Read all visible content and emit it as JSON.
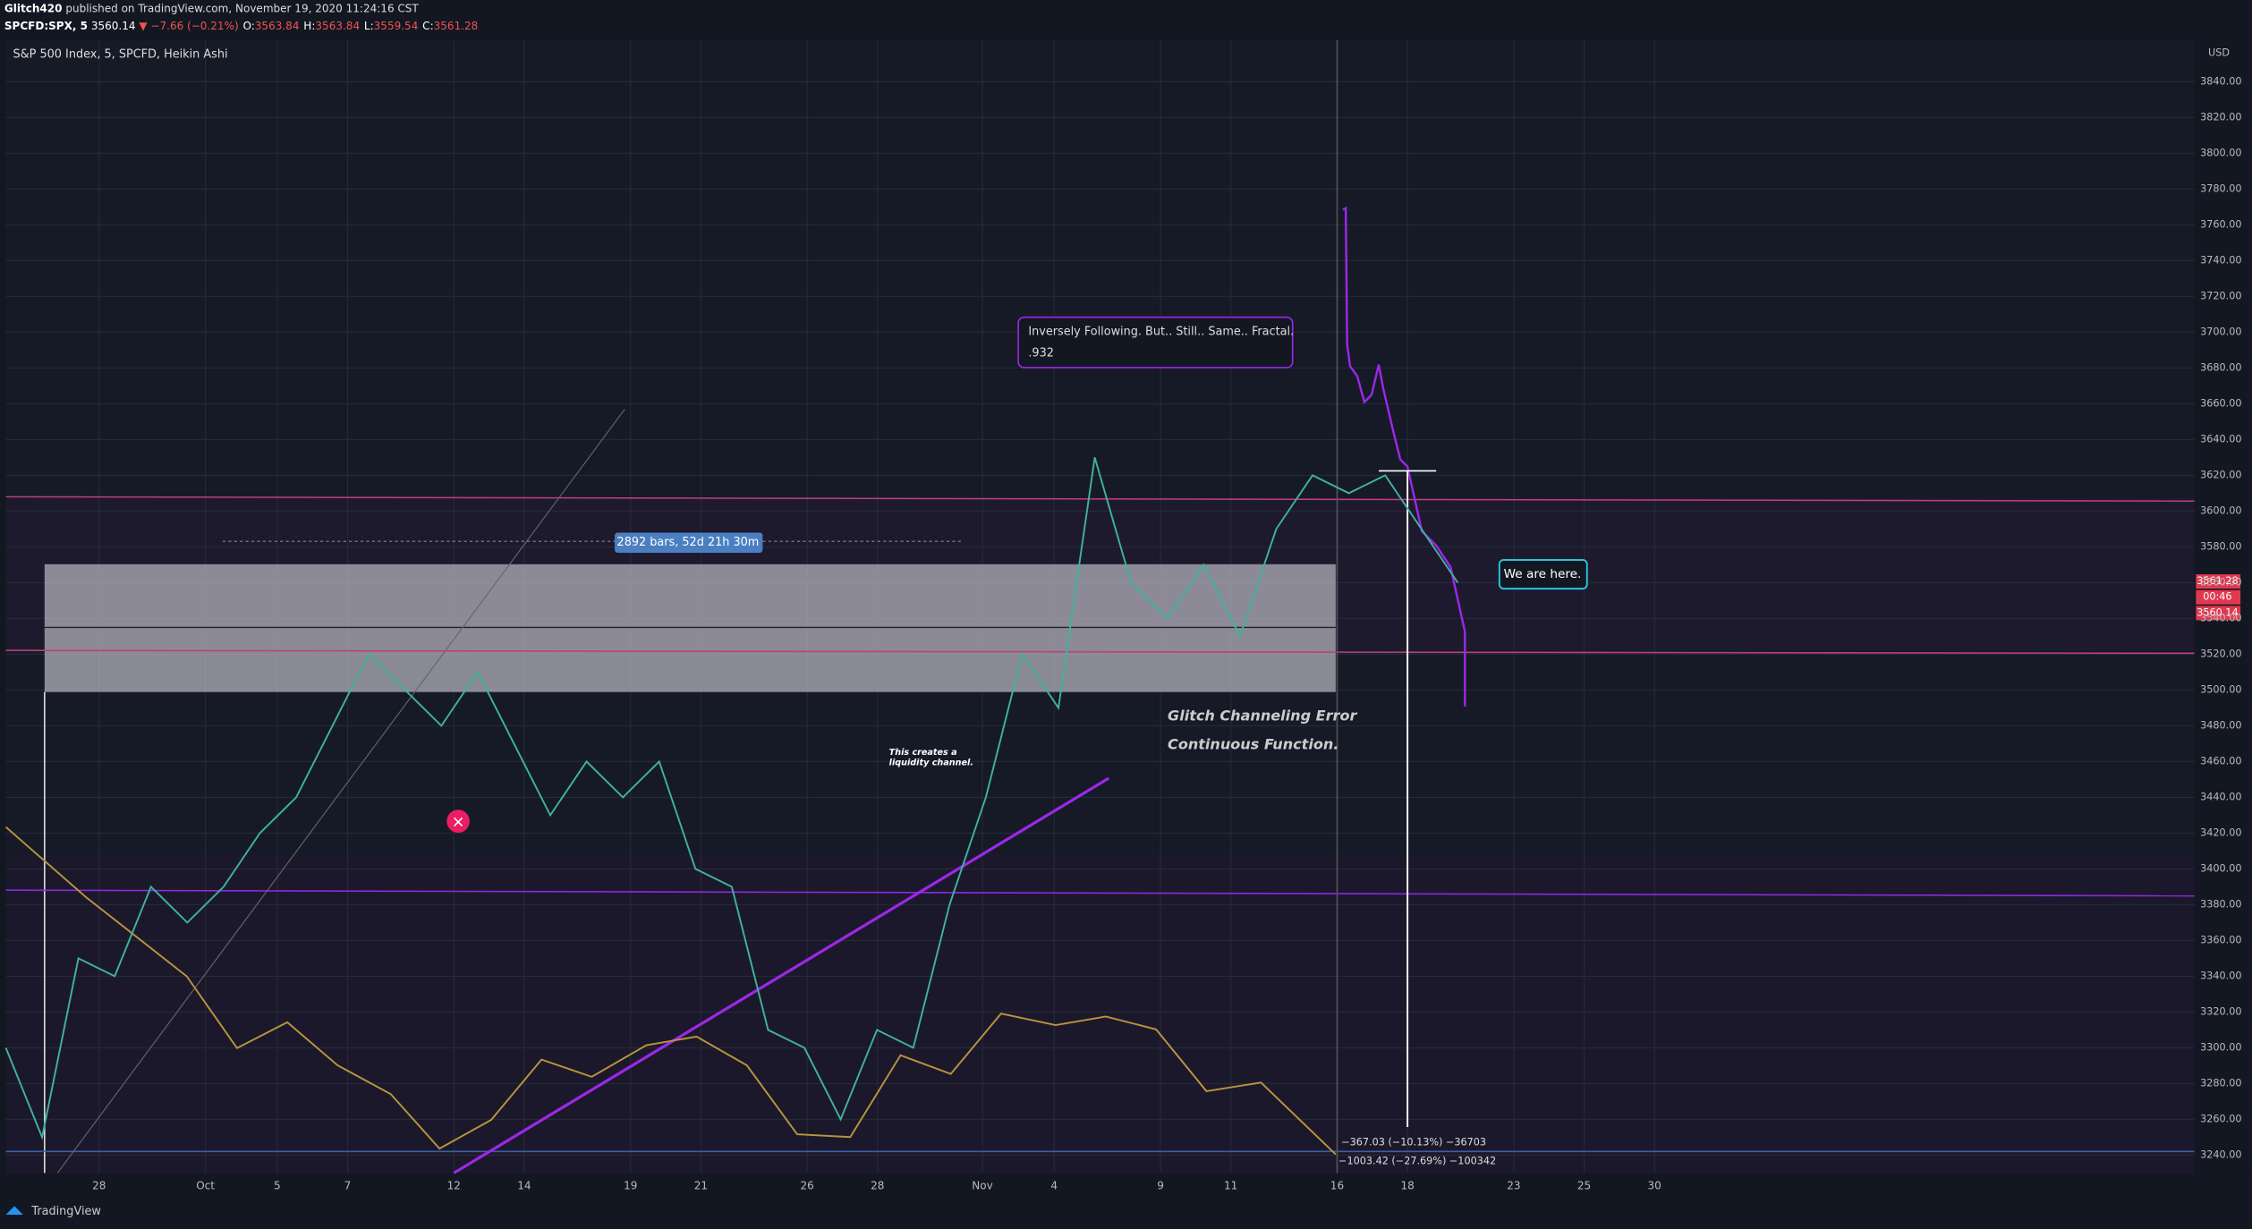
{
  "header": {
    "author": "Glitch420",
    "published": "published on TradingView.com, November 19, 2020 11:24:16 CST",
    "symbol": "SPCFD:SPX, 5",
    "last": "3560.14",
    "change": "▼ −7.66 (−0.21%)",
    "ohlc": [
      {
        "k": "O:",
        "v": "3563.84"
      },
      {
        "k": "H:",
        "v": "3563.84"
      },
      {
        "k": "L:",
        "v": "3559.54"
      },
      {
        "k": "C:",
        "v": "3561.28"
      }
    ]
  },
  "legend": "S&P 500 Index, 5, SPCFD, Heikin Ashi",
  "currency": "USD",
  "axis": {
    "ylim": [
      3230,
      3860
    ],
    "yticks": [
      {
        "value": 3240,
        "label": "3240.00"
      },
      {
        "value": 3260,
        "label": "3260.00"
      },
      {
        "value": 3280,
        "label": "3280.00"
      },
      {
        "value": 3300,
        "label": "3300.00"
      },
      {
        "value": 3320,
        "label": "3320.00"
      },
      {
        "value": 3340,
        "label": "3340.00"
      },
      {
        "value": 3360,
        "label": "3360.00"
      },
      {
        "value": 3380,
        "label": "3380.00"
      },
      {
        "value": 3400,
        "label": "3400.00"
      },
      {
        "value": 3420,
        "label": "3420.00"
      },
      {
        "value": 3440,
        "label": "3440.00"
      },
      {
        "value": 3460,
        "label": "3460.00"
      },
      {
        "value": 3480,
        "label": "3480.00"
      },
      {
        "value": 3500,
        "label": "3500.00"
      },
      {
        "value": 3520,
        "label": "3520.00"
      },
      {
        "value": 3540,
        "label": "3540.00"
      },
      {
        "value": 3560,
        "label": "3560.00"
      },
      {
        "value": 3580,
        "label": "3580.00"
      },
      {
        "value": 3600,
        "label": "3600.00"
      },
      {
        "value": 3620,
        "label": "3620.00"
      },
      {
        "value": 3640,
        "label": "3640.00"
      },
      {
        "value": 3660,
        "label": "3660.00"
      },
      {
        "value": 3680,
        "label": "3680.00"
      },
      {
        "value": 3700,
        "label": "3700.00"
      },
      {
        "value": 3720,
        "label": "3720.00"
      },
      {
        "value": 3740,
        "label": "3740.00"
      },
      {
        "value": 3760,
        "label": "3760.00"
      },
      {
        "value": 3780,
        "label": "3780.00"
      },
      {
        "value": 3800,
        "label": "3800.00"
      },
      {
        "value": 3820,
        "label": "3820.00"
      },
      {
        "value": 3840,
        "label": "3840.00"
      }
    ],
    "xlabels": [
      "28",
      "Oct",
      "5",
      "7",
      "12",
      "14",
      "19",
      "21",
      "26",
      "28",
      "Nov",
      "4",
      "9",
      "11",
      "16",
      "18",
      "23",
      "25",
      "30"
    ]
  },
  "price": [
    3300,
    3250,
    3350,
    3340,
    3390,
    3370,
    3390,
    3420,
    3440,
    3480,
    3520,
    3500,
    3480,
    3510,
    3470,
    3430,
    3460,
    3440,
    3460,
    3400,
    3390,
    3310,
    3300,
    3260,
    3310,
    3300,
    3380,
    3440,
    3520,
    3490,
    3630,
    3560,
    3540,
    3570,
    3530,
    3590,
    3620,
    3610,
    3620,
    3590,
    3560
  ],
  "price_tags": [
    "3561.28",
    "00:46",
    "3560.14"
  ],
  "annotations": {
    "measure": "2892 bars, 52d 21h 30m",
    "callout": "Inversely Following. But.. Still.. Same.. Fractal.",
    "callout2": ".932",
    "here": "We are here.",
    "glitch": "Glitch Channeling Error",
    "continuous": "Continuous Function.",
    "liquidity1": "This creates a",
    "liquidity2": "liquidity channel.",
    "range1": "−367.03 (−10.13%) −36703",
    "range2": "−1003.42 (−27.69%) −100342"
  },
  "footer": "TradingView"
}
